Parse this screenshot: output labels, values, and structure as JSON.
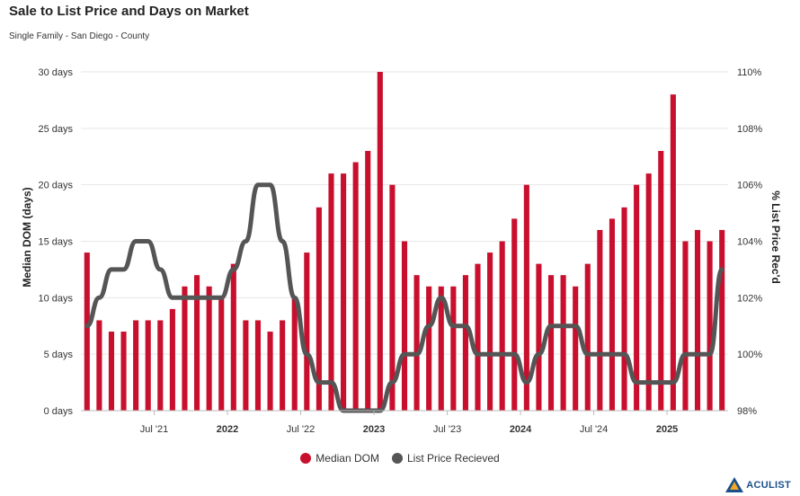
{
  "title": "Sale to List Price and Days on Market",
  "subtitle": "Single Family - San Diego - County",
  "colors": {
    "bar": "#c8102e",
    "line": "#555555",
    "grid": "#e6e6e6",
    "logo": "#1a4f8c"
  },
  "logo": {
    "text": "ACULIST"
  },
  "chart_data": {
    "type": "bar",
    "ylabel_left": "Median DOM (days)",
    "ylabel_right": "% List Price Rec'd",
    "y_left_ticks": [
      "0 days",
      "5 days",
      "10 days",
      "15 days",
      "20 days",
      "25 days",
      "30 days"
    ],
    "y_right_ticks": [
      "98%",
      "100%",
      "102%",
      "104%",
      "106%",
      "108%",
      "110%"
    ],
    "ylim_left": [
      0,
      30
    ],
    "ylim_right": [
      98,
      110
    ],
    "x_ticks": [
      {
        "label": "Jul '21",
        "index": 6,
        "bold": false
      },
      {
        "label": "2022",
        "index": 12,
        "bold": true
      },
      {
        "label": "Jul '22",
        "index": 18,
        "bold": false
      },
      {
        "label": "2023",
        "index": 24,
        "bold": true
      },
      {
        "label": "Jul '23",
        "index": 30,
        "bold": false
      },
      {
        "label": "2024",
        "index": 36,
        "bold": true
      },
      {
        "label": "Jul '24",
        "index": 42,
        "bold": false
      },
      {
        "label": "2025",
        "index": 48,
        "bold": true
      }
    ],
    "legend_position": "bottom-center",
    "series": [
      {
        "name": "Median DOM",
        "type": "bar",
        "axis": "left",
        "values": [
          14,
          8,
          7,
          7,
          8,
          8,
          8,
          9,
          11,
          12,
          11,
          10,
          13,
          8,
          8,
          7,
          8,
          10,
          14,
          18,
          21,
          21,
          22,
          23,
          30,
          20,
          15,
          12,
          11,
          11,
          11,
          12,
          13,
          14,
          15,
          17,
          20,
          13,
          12,
          12,
          11,
          13,
          16,
          17,
          18,
          20,
          21,
          23,
          28,
          15,
          16,
          15,
          16
        ]
      },
      {
        "name": "List Price Recieved",
        "type": "line",
        "axis": "right",
        "values": [
          101,
          102,
          103,
          103,
          104,
          104,
          103,
          102,
          102,
          102,
          102,
          102,
          103,
          104,
          106,
          106,
          104,
          102,
          100,
          99,
          99,
          98,
          98,
          98,
          98,
          99,
          100,
          100,
          101,
          102,
          101,
          101,
          100,
          100,
          100,
          100,
          99,
          100,
          101,
          101,
          101,
          100,
          100,
          100,
          100,
          99,
          99,
          99,
          99,
          100,
          100,
          100,
          103
        ]
      }
    ]
  }
}
